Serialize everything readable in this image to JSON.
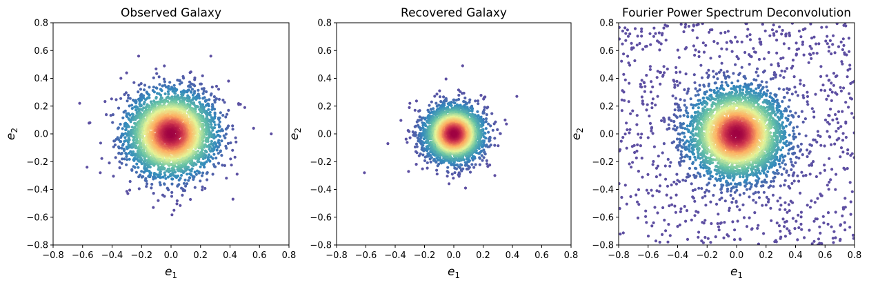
{
  "chart_data": [
    {
      "type": "scatter",
      "title": "Observed Galaxy",
      "xlabel": "e",
      "xlabel_sub": "1",
      "ylabel": "e",
      "ylabel_sub": "2",
      "xlim": [
        -0.8,
        0.8
      ],
      "ylim": [
        -0.8,
        0.8
      ],
      "xticks": [
        "−0.8",
        "−0.6",
        "−0.4",
        "−0.2",
        "0.0",
        "0.2",
        "0.4",
        "0.6",
        "0.8"
      ],
      "yticks": [
        "−0.8",
        "−0.6",
        "−0.4",
        "−0.2",
        "0.0",
        "0.2",
        "0.4",
        "0.6",
        "0.8"
      ],
      "grid": false,
      "colormap": "Spectral_r (density)",
      "distribution": {
        "center": [
          0.0,
          0.0
        ],
        "sigma": 0.15,
        "n_points": 3500
      },
      "outliers": [
        [
          -0.62,
          0.22
        ],
        [
          -0.57,
          -0.24
        ],
        [
          0.68,
          0.0
        ],
        [
          0.56,
          0.04
        ],
        [
          0.5,
          0.19
        ],
        [
          -0.22,
          0.56
        ],
        [
          0.27,
          0.56
        ],
        [
          0.42,
          -0.47
        ],
        [
          0.02,
          -0.55
        ],
        [
          -0.12,
          -0.53
        ],
        [
          -0.48,
          -0.28
        ],
        [
          -0.55,
          0.08
        ],
        [
          0.39,
          0.38
        ],
        [
          -0.34,
          0.4
        ]
      ]
    },
    {
      "type": "scatter",
      "title": "Recovered Galaxy",
      "xlabel": "e",
      "xlabel_sub": "1",
      "ylabel": "e",
      "ylabel_sub": "2",
      "xlim": [
        -0.8,
        0.8
      ],
      "ylim": [
        -0.8,
        0.8
      ],
      "xticks": [
        "−0.8",
        "−0.6",
        "−0.4",
        "−0.2",
        "0.0",
        "0.2",
        "0.4",
        "0.6",
        "0.8"
      ],
      "yticks": [
        "−0.8",
        "−0.6",
        "−0.4",
        "−0.2",
        "0.0",
        "0.2",
        "0.4",
        "0.6",
        "0.8"
      ],
      "grid": false,
      "colormap": "Spectral_r (density)",
      "distribution": {
        "center": [
          0.0,
          0.0
        ],
        "sigma": 0.1,
        "n_points": 3000
      },
      "outliers": [
        [
          -0.61,
          -0.28
        ],
        [
          0.43,
          0.27
        ],
        [
          0.06,
          0.49
        ],
        [
          -0.45,
          -0.07
        ],
        [
          0.35,
          0.1
        ],
        [
          0.08,
          -0.39
        ],
        [
          -0.3,
          0.22
        ],
        [
          0.28,
          -0.3
        ]
      ]
    },
    {
      "type": "scatter",
      "title": "Fourier Power Spectrum Deconvolution",
      "xlabel": "e",
      "xlabel_sub": "1",
      "ylabel": "e",
      "ylabel_sub": "2",
      "xlim": [
        -0.8,
        0.8
      ],
      "ylim": [
        -0.8,
        0.8
      ],
      "xticks": [
        "−0.8",
        "−0.6",
        "−0.4",
        "−0.2",
        "0.0",
        "0.2",
        "0.4",
        "0.6",
        "0.8"
      ],
      "yticks": [
        "−0.8",
        "−0.6",
        "−0.4",
        "−0.2",
        "0.0",
        "0.2",
        "0.4",
        "0.6",
        "0.8"
      ],
      "grid": false,
      "colormap": "Spectral_r (density)",
      "distribution": {
        "center": [
          0.0,
          0.0
        ],
        "sigma": 0.16,
        "n_points": 3500,
        "uniform_background_points": 900
      },
      "outliers": []
    }
  ],
  "colors": {
    "low_density": "#5e4fa2",
    "mid_low": "#3288bd",
    "mid": "#66c2a5",
    "mid_high": "#e6f598",
    "high": "#fdae61",
    "peak": "#9e0142"
  }
}
